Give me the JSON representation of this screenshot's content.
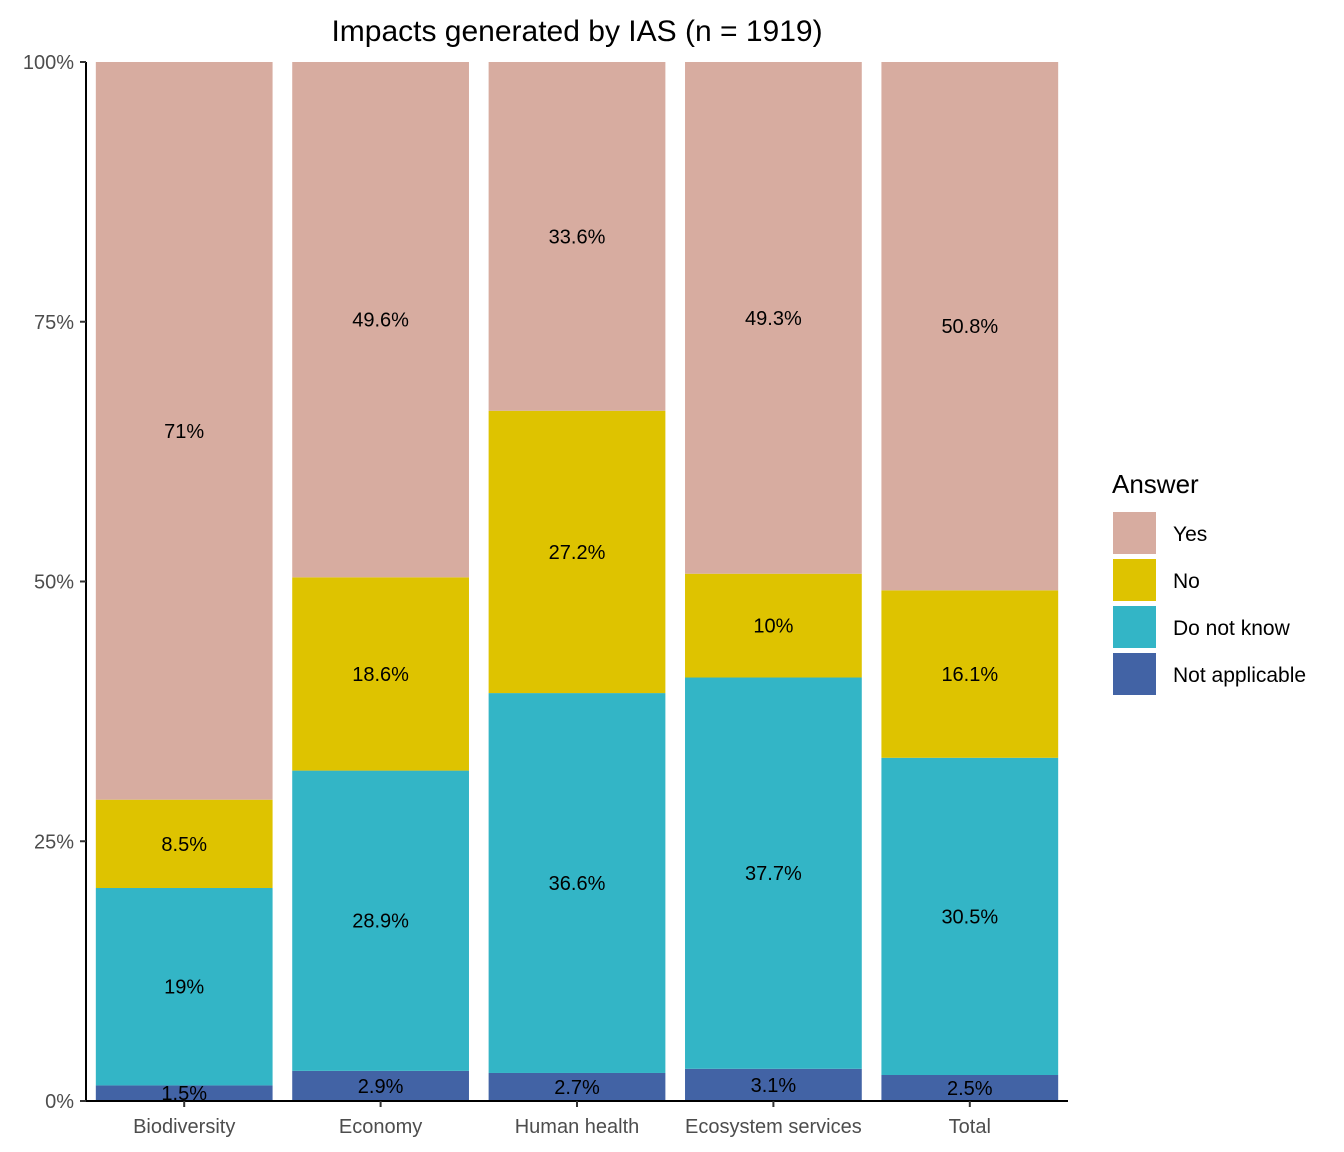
{
  "chart_data": {
    "type": "bar",
    "stacked": true,
    "percent_scale": true,
    "title": "Impacts generated by IAS (n = 1919)",
    "xlabel": "",
    "ylabel": "",
    "ylim": [
      0,
      100
    ],
    "y_ticks": [
      0,
      25,
      50,
      75,
      100
    ],
    "y_tick_labels": [
      "0%",
      "25%",
      "50%",
      "75%",
      "100%"
    ],
    "categories": [
      "Biodiversity",
      "Economy",
      "Human health",
      "Ecosystem services",
      "Total"
    ],
    "series": [
      {
        "name": "Not applicable",
        "color": "#4263a5",
        "values": [
          1.5,
          2.9,
          2.7,
          3.1,
          2.5
        ],
        "labels": [
          "1.5%",
          "2.9%",
          "2.7%",
          "3.1%",
          "2.5%"
        ]
      },
      {
        "name": "Do not know",
        "color": "#33b5c6",
        "values": [
          19,
          28.9,
          36.6,
          37.7,
          30.5
        ],
        "labels": [
          "19%",
          "28.9%",
          "36.6%",
          "37.7%",
          "30.5%"
        ]
      },
      {
        "name": "No",
        "color": "#dec300",
        "values": [
          8.5,
          18.6,
          27.2,
          10,
          16.1
        ],
        "labels": [
          "8.5%",
          "18.6%",
          "27.2%",
          "10%",
          "16.1%"
        ]
      },
      {
        "name": "Yes",
        "color": "#d7aca0",
        "values": [
          71,
          49.6,
          33.6,
          49.3,
          50.8
        ],
        "labels": [
          "71%",
          "49.6%",
          "33.6%",
          "49.3%",
          "50.8%"
        ]
      }
    ],
    "legend": {
      "title": "Answer",
      "position": "right",
      "order": [
        "Yes",
        "No",
        "Do not know",
        "Not applicable"
      ]
    },
    "grid": false
  }
}
